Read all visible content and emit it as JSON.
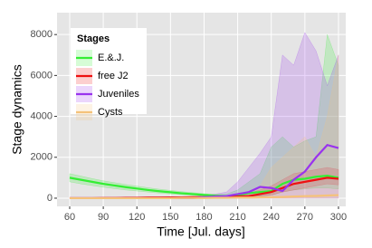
{
  "chart_data": {
    "type": "line",
    "x_label": "Time [Jul. days]",
    "y_label": "Stage dynamics",
    "legend_title": "Stages",
    "legend": "top-left",
    "grid": true,
    "x": [
      60,
      70,
      80,
      90,
      100,
      110,
      120,
      130,
      140,
      150,
      160,
      170,
      180,
      190,
      200,
      210,
      220,
      230,
      240,
      250,
      260,
      270,
      280,
      290,
      300
    ],
    "xlim": [
      48.7,
      306.5
    ],
    "xticks": [
      60,
      90,
      120,
      150,
      180,
      210,
      240,
      270,
      300
    ],
    "ylim": [
      -400,
      9070
    ],
    "yticks": [
      0,
      2000,
      4000,
      6000,
      8000
    ],
    "series": [
      {
        "name": "E.&.J.",
        "color": "#33ee33",
        "values": [
          1000,
          900,
          800,
          700,
          620,
          540,
          470,
          400,
          340,
          290,
          240,
          200,
          160,
          120,
          100,
          150,
          250,
          300,
          350,
          700,
          900,
          950,
          1050,
          1100,
          1000
        ],
        "lower": [
          800,
          700,
          620,
          540,
          470,
          400,
          350,
          300,
          250,
          210,
          170,
          140,
          110,
          80,
          60,
          50,
          80,
          100,
          150,
          300,
          400,
          450,
          500,
          500,
          450
        ],
        "upper": [
          1200,
          1080,
          960,
          850,
          760,
          670,
          590,
          510,
          440,
          380,
          320,
          270,
          220,
          180,
          200,
          400,
          800,
          1200,
          2500,
          3000,
          2500,
          2800,
          3000,
          8000,
          6500
        ]
      },
      {
        "name": "free J2",
        "color": "#ee1111",
        "values": [
          0,
          0,
          0,
          10,
          10,
          20,
          20,
          30,
          30,
          40,
          40,
          50,
          50,
          50,
          50,
          80,
          100,
          200,
          300,
          500,
          700,
          800,
          900,
          1000,
          950
        ],
        "lower": [
          0,
          0,
          0,
          0,
          0,
          10,
          10,
          10,
          20,
          20,
          20,
          30,
          30,
          30,
          30,
          40,
          50,
          100,
          150,
          300,
          400,
          500,
          600,
          700,
          650
        ],
        "upper": [
          20,
          20,
          30,
          30,
          40,
          40,
          50,
          60,
          60,
          70,
          70,
          80,
          80,
          90,
          100,
          150,
          250,
          400,
          600,
          900,
          1200,
          1300,
          1400,
          1500,
          1400
        ]
      },
      {
        "name": "Juveniles",
        "color": "#9933ee",
        "values": [
          0,
          0,
          0,
          0,
          0,
          0,
          0,
          0,
          0,
          0,
          0,
          0,
          50,
          80,
          100,
          200,
          300,
          550,
          500,
          350,
          900,
          1300,
          2000,
          2600,
          2450
        ],
        "lower": [
          0,
          0,
          0,
          0,
          0,
          0,
          0,
          0,
          0,
          0,
          0,
          0,
          0,
          0,
          0,
          0,
          0,
          0,
          0,
          0,
          0,
          0,
          0,
          0,
          0
        ],
        "upper": [
          0,
          0,
          0,
          0,
          0,
          0,
          0,
          0,
          0,
          0,
          0,
          50,
          150,
          200,
          300,
          800,
          1500,
          2200,
          3000,
          7000,
          6500,
          8100,
          7200,
          5500,
          7000
        ]
      },
      {
        "name": "Cysts",
        "color": "#f5c27a",
        "values": [
          0,
          0,
          0,
          0,
          0,
          0,
          0,
          0,
          0,
          0,
          10,
          10,
          10,
          20,
          20,
          30,
          30,
          40,
          50,
          60,
          80,
          100,
          110,
          130,
          150
        ],
        "lower": [
          0,
          0,
          0,
          0,
          0,
          0,
          0,
          0,
          0,
          0,
          0,
          0,
          0,
          0,
          0,
          0,
          0,
          0,
          0,
          0,
          0,
          0,
          0,
          0,
          0
        ],
        "upper": [
          0,
          0,
          0,
          0,
          0,
          0,
          0,
          0,
          0,
          0,
          30,
          50,
          60,
          80,
          100,
          150,
          200,
          600,
          1500,
          2000,
          2500,
          3000,
          2000,
          4000,
          7000
        ]
      }
    ]
  }
}
